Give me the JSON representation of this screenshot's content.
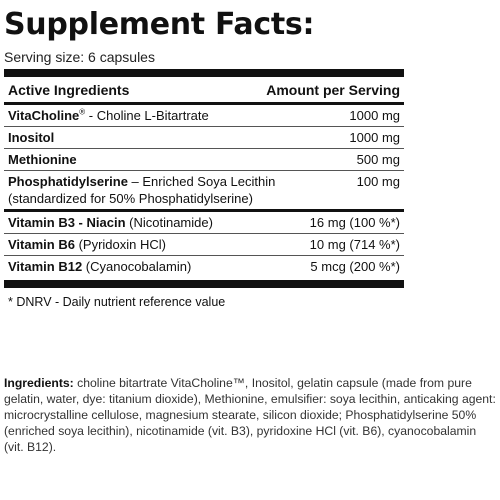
{
  "title": "Supplement Facts:",
  "serving_size": "Serving size: 6 capsules",
  "header": {
    "active": "Active Ingredients",
    "amount": "Amount per Serving"
  },
  "rows": [
    {
      "name": "VitaCholine",
      "sup": "®",
      "detail": " - Choline L-Bitartrate",
      "detail2": "",
      "amount": "1000 mg"
    },
    {
      "name": "Inositol",
      "sup": "",
      "detail": "",
      "detail2": "",
      "amount": "1000 mg"
    },
    {
      "name": "Methionine",
      "sup": "",
      "detail": "",
      "detail2": "",
      "amount": "500 mg"
    },
    {
      "name": "Phosphatidylserine",
      "sup": "",
      "detail": " – Enriched Soya Lecithin",
      "detail2": "(standardized for 50% Phosphatidylserine)",
      "amount": "100 mg"
    },
    {
      "name": "Vitamin B3 - Niacin",
      "sup": "",
      "detail": " (Nicotinamide)",
      "detail2": "",
      "amount": "16 mg (100 %*)"
    },
    {
      "name": "Vitamin B6",
      "sup": "",
      "detail": " (Pyridoxin HCl)",
      "detail2": "",
      "amount": "10 mg (714 %*)"
    },
    {
      "name": "Vitamin B12",
      "sup": "",
      "detail": " (Cyanocobalamin)",
      "detail2": "",
      "amount": "5 mcg (200 %*)"
    }
  ],
  "footnote": "* DNRV - Daily nutrient reference value",
  "ingredients_label": "Ingredients:",
  "ingredients_text": " choline bitartrate VitaCholine™, Inositol, gelatin capsule (made from pure gelatin, water, dye: titanium dioxide), Methionine, emulsifier: soya lecithin, anticaking agent: microcrystalline cellulose, magnesium stearate, silicon dioxide; Phosphatidylserine 50% (enriched soya lecithin), nicotinamide (vit. B3), pyridoxine HCl (vit. B6), cyanocobalamin (vit. B12)."
}
